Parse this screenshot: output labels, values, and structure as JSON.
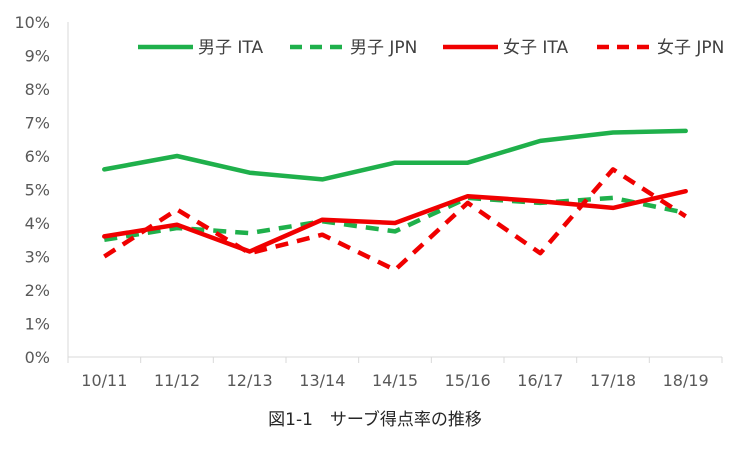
{
  "chart_data": {
    "type": "line",
    "title": "",
    "caption": "図1-1　サーブ得点率の推移",
    "xlabel": "",
    "ylabel": "",
    "categories": [
      "10/11",
      "11/12",
      "12/13",
      "13/14",
      "14/15",
      "15/16",
      "16/17",
      "17/18",
      "18/19"
    ],
    "y_ticks": [
      "0%",
      "1%",
      "2%",
      "3%",
      "4%",
      "5%",
      "6%",
      "7%",
      "8%",
      "9%",
      "10%"
    ],
    "ylim": [
      0,
      10
    ],
    "y_unit": "%",
    "grid": false,
    "legend_position": "top",
    "series": [
      {
        "name": "男子 ITA",
        "color": "#1fb04b",
        "dash": false,
        "values": [
          5.6,
          6.0,
          5.5,
          5.3,
          5.8,
          5.8,
          6.45,
          6.7,
          6.75
        ]
      },
      {
        "name": "男子 JPN",
        "color": "#1fb04b",
        "dash": true,
        "values": [
          3.5,
          3.85,
          3.7,
          4.05,
          3.75,
          4.75,
          4.6,
          4.75,
          4.3
        ]
      },
      {
        "name": "女子 ITA",
        "color": "#f00000",
        "dash": false,
        "values": [
          3.6,
          3.95,
          3.15,
          4.1,
          4.0,
          4.8,
          4.65,
          4.45,
          4.95
        ]
      },
      {
        "name": "女子 JPN",
        "color": "#f00000",
        "dash": true,
        "values": [
          3.0,
          4.4,
          3.1,
          3.65,
          2.6,
          4.6,
          3.1,
          5.6,
          4.2
        ]
      }
    ]
  }
}
